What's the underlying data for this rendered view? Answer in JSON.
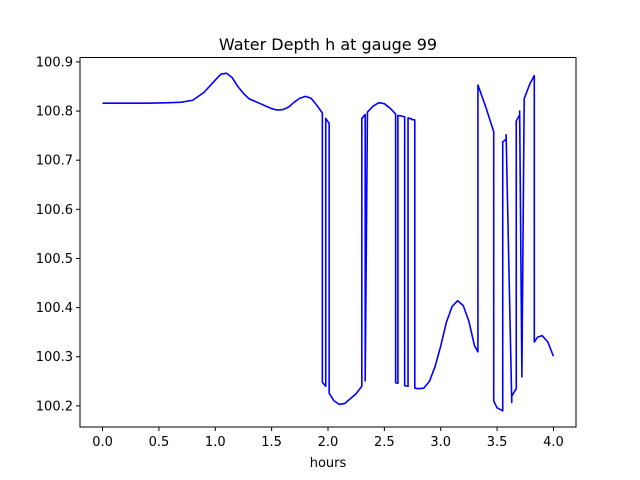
{
  "chart_data": {
    "type": "line",
    "title": "Water Depth h at gauge 99",
    "xlabel": "hours",
    "ylabel": "",
    "xlim": [
      -0.2,
      4.2
    ],
    "ylim": [
      100.157,
      100.909
    ],
    "xticks": [
      0.0,
      0.5,
      1.0,
      1.5,
      2.0,
      2.5,
      3.0,
      3.5,
      4.0
    ],
    "xtick_labels": [
      "0.0",
      "0.5",
      "1.0",
      "1.5",
      "2.0",
      "2.5",
      "3.0",
      "3.5",
      "4.0"
    ],
    "yticks": [
      100.2,
      100.3,
      100.4,
      100.5,
      100.6,
      100.7,
      100.8,
      100.9
    ],
    "ytick_labels": [
      "100.2",
      "100.3",
      "100.4",
      "100.5",
      "100.6",
      "100.7",
      "100.8",
      "100.9"
    ],
    "grid": false,
    "series": [
      {
        "name": "",
        "color": "#0000ff",
        "x": [
          0.0,
          0.2,
          0.4,
          0.6,
          0.7,
          0.8,
          0.9,
          1.0,
          1.05,
          1.1,
          1.15,
          1.2,
          1.25,
          1.3,
          1.4,
          1.5,
          1.55,
          1.6,
          1.65,
          1.7,
          1.75,
          1.8,
          1.85,
          1.9,
          1.95,
          1.95,
          1.98,
          1.98,
          2.01,
          2.01,
          2.05,
          2.1,
          2.15,
          2.2,
          2.25,
          2.3,
          2.3,
          2.33,
          2.33,
          2.35,
          2.4,
          2.45,
          2.5,
          2.55,
          2.6,
          2.6,
          2.62,
          2.62,
          2.65,
          2.68,
          2.68,
          2.71,
          2.71,
          2.74,
          2.74,
          2.77,
          2.77,
          2.8,
          2.85,
          2.9,
          2.95,
          3.0,
          3.05,
          3.1,
          3.15,
          3.2,
          3.25,
          3.3,
          3.33,
          3.33,
          3.4,
          3.47,
          3.47,
          3.5,
          3.55,
          3.55,
          3.58,
          3.58,
          3.63,
          3.63,
          3.67,
          3.67,
          3.7,
          3.7,
          3.72,
          3.72,
          3.74,
          3.74,
          3.79,
          3.83,
          3.83,
          3.86,
          3.9,
          3.95,
          4.0
        ],
        "y": [
          100.816,
          100.816,
          100.816,
          100.817,
          100.818,
          100.822,
          100.838,
          100.863,
          100.875,
          100.877,
          100.868,
          100.85,
          100.836,
          100.825,
          100.815,
          100.805,
          100.802,
          100.803,
          100.808,
          100.818,
          100.826,
          100.83,
          100.826,
          100.812,
          100.796,
          100.248,
          100.24,
          100.785,
          100.775,
          100.226,
          100.211,
          100.203,
          100.205,
          100.215,
          100.225,
          100.24,
          100.785,
          100.793,
          100.251,
          100.798,
          100.81,
          100.817,
          100.815,
          100.806,
          100.794,
          100.247,
          100.246,
          100.791,
          100.79,
          100.788,
          100.241,
          100.24,
          100.786,
          100.784,
          100.783,
          100.782,
          100.236,
          100.235,
          100.236,
          100.25,
          100.28,
          100.322,
          100.37,
          100.402,
          100.414,
          100.404,
          100.372,
          100.322,
          100.31,
          100.853,
          100.808,
          100.758,
          100.21,
          100.196,
          100.19,
          100.737,
          100.743,
          100.752,
          100.207,
          100.22,
          100.235,
          100.78,
          100.792,
          100.8,
          100.259,
          100.267,
          100.815,
          100.825,
          100.855,
          100.872,
          100.33,
          100.34,
          100.343,
          100.33,
          100.301
        ]
      }
    ]
  }
}
